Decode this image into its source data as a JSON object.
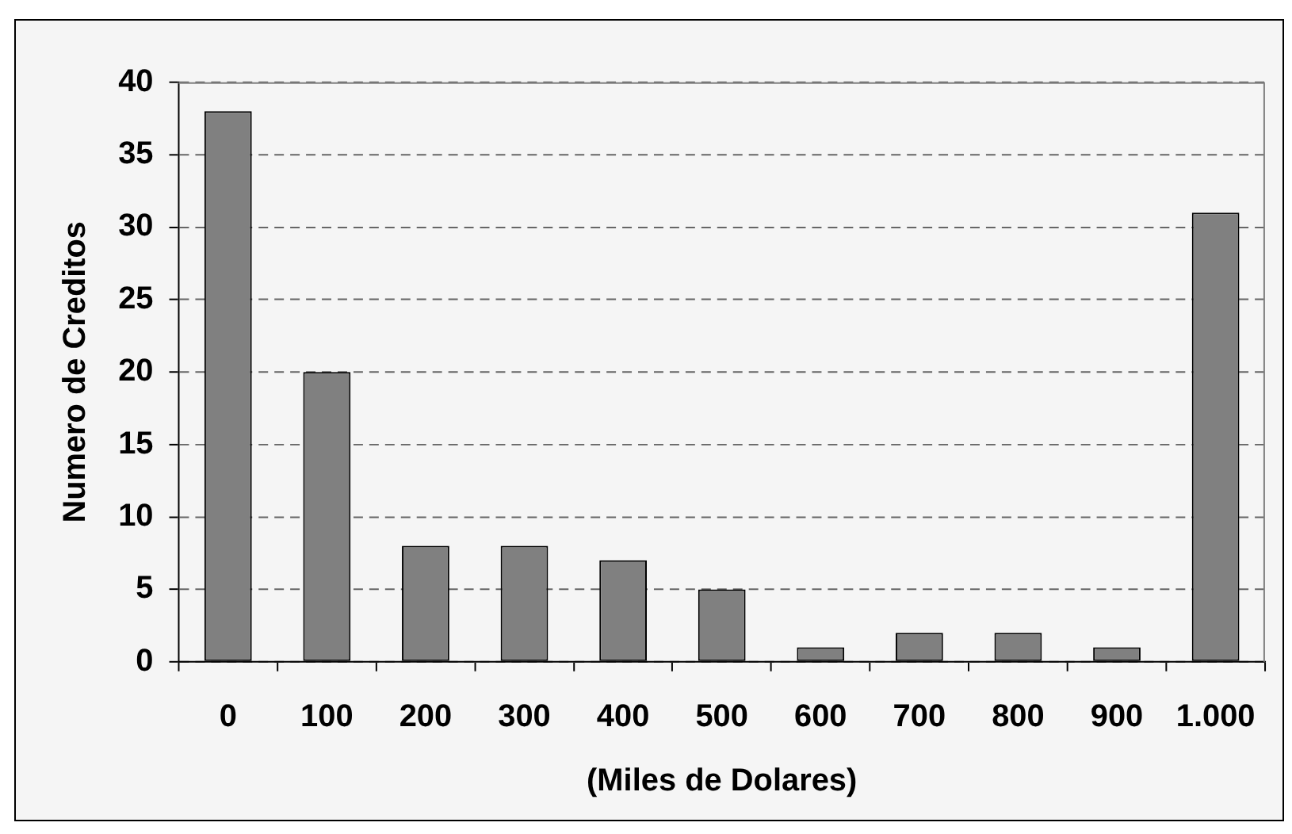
{
  "chart_data": {
    "type": "bar",
    "xlabel": "(Miles de Dolares)",
    "ylabel": "Numero de Creditos",
    "categories": [
      "0",
      "100",
      "200",
      "300",
      "400",
      "500",
      "600",
      "700",
      "800",
      "900",
      "1.000"
    ],
    "values": [
      38,
      20,
      8,
      8,
      7,
      5,
      1,
      2,
      2,
      1,
      31
    ],
    "color": "#808080",
    "ylim": [
      0,
      40
    ],
    "yticks": [
      0,
      5,
      10,
      15,
      20,
      25,
      30,
      35,
      40
    ],
    "grid": "y"
  }
}
